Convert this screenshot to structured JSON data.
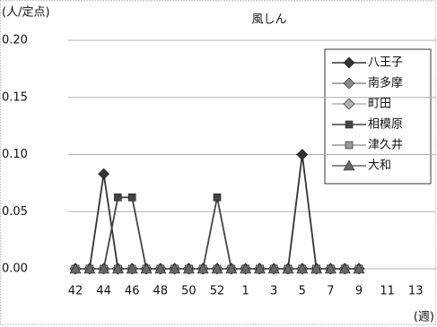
{
  "chart_data": {
    "type": "line",
    "title": "風しん",
    "y_label": "(人/定点)",
    "x_label": "(週)",
    "categories": [
      "42",
      null,
      "44",
      null,
      "46",
      null,
      "48",
      null,
      "50",
      null,
      "52",
      null,
      "1",
      null,
      "3",
      null,
      "5",
      null,
      "7",
      null,
      "9",
      null,
      "11",
      null,
      "13"
    ],
    "ylim": [
      0,
      0.2
    ],
    "yticks": [
      {
        "value": 0,
        "label": "0.00"
      },
      {
        "value": 0.05,
        "label": "0.05"
      },
      {
        "value": 0.1,
        "label": "0.10"
      },
      {
        "value": 0.15,
        "label": "0.15"
      },
      {
        "value": 0.2,
        "label": "0.20"
      }
    ],
    "grid": true,
    "legend": "upper right",
    "series": [
      {
        "name": "八王子",
        "color": "#333333",
        "marker": "diamond",
        "values": [
          0,
          0,
          0.083,
          0,
          0,
          0,
          0,
          0,
          0,
          0,
          0,
          0,
          0,
          0,
          0,
          0,
          0.1,
          0,
          0,
          0,
          0,
          null,
          null,
          null,
          null
        ]
      },
      {
        "name": "南多摩",
        "color": "#8a8a8a",
        "marker": "diamond",
        "values": [
          0,
          0,
          0,
          0,
          0,
          0,
          0,
          0,
          0,
          0,
          0,
          0,
          0,
          0,
          0,
          0,
          0,
          0,
          0,
          0,
          0,
          null,
          null,
          null,
          null
        ]
      },
      {
        "name": "町田",
        "color": "#b0b0b0",
        "marker": "diamond",
        "values": [
          0,
          0,
          0,
          0,
          0,
          0,
          0,
          0,
          0,
          0,
          0,
          0,
          0,
          0,
          0,
          0,
          0,
          0,
          0,
          0,
          0,
          null,
          null,
          null,
          null
        ]
      },
      {
        "name": "相模原",
        "color": "#444444",
        "marker": "square",
        "values": [
          0,
          0,
          0,
          0.0625,
          0.0625,
          0,
          0,
          0,
          0,
          0,
          0.0625,
          0,
          0,
          0,
          0,
          0,
          0,
          0,
          0,
          0,
          0,
          null,
          null,
          null,
          null
        ]
      },
      {
        "name": "津久井",
        "color": "#999999",
        "marker": "square",
        "values": [
          0,
          0,
          0,
          0,
          0,
          0,
          0,
          0,
          0,
          0,
          0,
          0,
          0,
          0,
          0,
          0,
          0,
          0,
          0,
          0,
          0,
          null,
          null,
          null,
          null
        ]
      },
      {
        "name": "大和",
        "color": "#666666",
        "marker": "triangle",
        "values": [
          0,
          0,
          0,
          0,
          0,
          0,
          0,
          0,
          0,
          0,
          0,
          0,
          0,
          0,
          0,
          0,
          0,
          0,
          0,
          0,
          0,
          null,
          null,
          null,
          null
        ]
      }
    ]
  }
}
